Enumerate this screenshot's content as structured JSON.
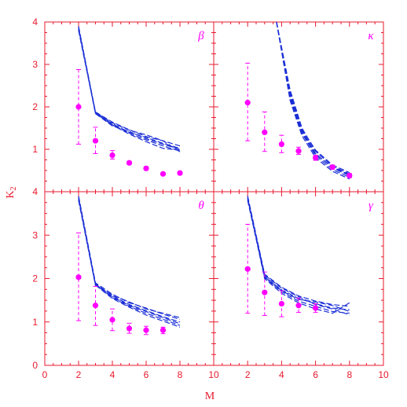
{
  "colors": {
    "frame": "#e8192c",
    "model": "#1a2ed6",
    "data": "#ff00ff"
  },
  "chart_data": {
    "type": "scatter",
    "layout": "2x2 panel grid with shared axes",
    "xlabel": "M",
    "ylabel": "K",
    "ylabel_subscript": "2",
    "xlim": [
      0,
      10
    ],
    "ylim": [
      0,
      4
    ],
    "x_ticks": [
      "0",
      "2",
      "4",
      "6",
      "8",
      "10"
    ],
    "y_ticks": [
      "0",
      "1",
      "2",
      "3",
      "4"
    ],
    "grid": false,
    "legend": "none",
    "panels": [
      {
        "label": "β",
        "position": "top-left",
        "points": [
          {
            "x": 2,
            "y": 2.0,
            "lo": 1.12,
            "hi": 2.88
          },
          {
            "x": 3,
            "y": 1.2,
            "lo": 0.9,
            "hi": 1.52
          },
          {
            "x": 4,
            "y": 0.86,
            "lo": 0.77,
            "hi": 0.97
          },
          {
            "x": 5,
            "y": 0.68,
            "lo": 0.64,
            "hi": 0.72
          },
          {
            "x": 6,
            "y": 0.55,
            "lo": 0.51,
            "hi": 0.59
          },
          {
            "x": 7,
            "y": 0.42,
            "lo": 0.39,
            "hi": 0.45
          },
          {
            "x": 8,
            "y": 0.44,
            "lo": 0.4,
            "hi": 0.48
          }
        ],
        "model_curves": [
          {
            "x": [
              2,
              3,
              4,
              5,
              6,
              7,
              8
            ],
            "y": [
              3.9,
              1.86,
              1.6,
              1.4,
              1.28,
              1.14,
              1.02
            ]
          },
          {
            "x": [
              2,
              3,
              4,
              5,
              6,
              7,
              8
            ],
            "y": [
              3.88,
              1.88,
              1.64,
              1.46,
              1.3,
              1.2,
              1.08
            ]
          },
          {
            "x": [
              2,
              3,
              4,
              5,
              6,
              7,
              8
            ],
            "y": [
              3.86,
              1.86,
              1.58,
              1.38,
              1.22,
              1.08,
              0.96
            ]
          },
          {
            "x": [
              2,
              3,
              4,
              5,
              6,
              7,
              8
            ],
            "y": [
              3.84,
              1.84,
              1.55,
              1.42,
              1.25,
              1.12,
              1.0
            ]
          },
          {
            "x": [
              2,
              3,
              4,
              5,
              6,
              7,
              8
            ],
            "y": [
              3.82,
              1.87,
              1.62,
              1.45,
              1.34,
              1.2,
              0.94
            ]
          },
          {
            "x": [
              2,
              3,
              4,
              5,
              6,
              7,
              8
            ],
            "y": [
              3.8,
              1.85,
              1.57,
              1.36,
              1.18,
              1.02,
              0.98
            ]
          }
        ]
      },
      {
        "label": "κ",
        "position": "top-right",
        "points": [
          {
            "x": 2,
            "y": 2.1,
            "lo": 1.2,
            "hi": 3.03
          },
          {
            "x": 3,
            "y": 1.4,
            "lo": 0.95,
            "hi": 1.88
          },
          {
            "x": 4,
            "y": 1.12,
            "lo": 0.92,
            "hi": 1.33
          },
          {
            "x": 5,
            "y": 0.96,
            "lo": 0.88,
            "hi": 1.05
          },
          {
            "x": 6,
            "y": 0.8,
            "lo": 0.74,
            "hi": 0.86
          },
          {
            "x": 7,
            "y": 0.58,
            "lo": 0.53,
            "hi": 0.63
          },
          {
            "x": 8,
            "y": 0.38,
            "lo": 0.33,
            "hi": 0.43
          }
        ],
        "model_curves": [
          {
            "x": [
              3.7,
              4.5,
              5.2,
              6,
              7,
              8
            ],
            "y": [
              4.0,
              2.4,
              1.5,
              0.95,
              0.6,
              0.42
            ]
          },
          {
            "x": [
              3.7,
              4.5,
              5.2,
              6,
              7,
              8
            ],
            "y": [
              4.0,
              2.3,
              1.45,
              0.9,
              0.56,
              0.38
            ]
          },
          {
            "x": [
              3.7,
              4.5,
              5.2,
              6,
              7,
              8
            ],
            "y": [
              4.0,
              2.2,
              1.38,
              0.85,
              0.52,
              0.34
            ]
          },
          {
            "x": [
              3.7,
              4.5,
              5.2,
              6,
              7,
              8
            ],
            "y": [
              4.0,
              2.15,
              1.32,
              0.8,
              0.48,
              0.3
            ]
          },
          {
            "x": [
              3.7,
              4.5,
              5.2,
              6,
              7,
              8
            ],
            "y": [
              4.0,
              2.35,
              1.48,
              0.98,
              0.63,
              0.45
            ]
          },
          {
            "x": [
              3.7,
              4.5,
              5.2,
              6,
              7,
              8
            ],
            "y": [
              4.0,
              2.25,
              1.42,
              0.88,
              0.58,
              0.4
            ]
          }
        ]
      },
      {
        "label": "θ",
        "position": "bottom-left",
        "points": [
          {
            "x": 2,
            "y": 2.03,
            "lo": 1.03,
            "hi": 3.05
          },
          {
            "x": 3,
            "y": 1.38,
            "lo": 0.92,
            "hi": 1.82
          },
          {
            "x": 4,
            "y": 1.05,
            "lo": 0.8,
            "hi": 1.3
          },
          {
            "x": 5,
            "y": 0.85,
            "lo": 0.74,
            "hi": 0.97
          },
          {
            "x": 6,
            "y": 0.81,
            "lo": 0.71,
            "hi": 0.9
          },
          {
            "x": 7,
            "y": 0.81,
            "lo": 0.73,
            "hi": 0.88
          }
        ],
        "model_curves": [
          {
            "x": [
              2,
              3,
              4,
              5,
              6,
              7,
              8
            ],
            "y": [
              3.9,
              1.9,
              1.64,
              1.44,
              1.32,
              1.18,
              1.06
            ]
          },
          {
            "x": [
              2,
              3,
              4,
              5,
              6,
              7,
              8
            ],
            "y": [
              3.88,
              1.88,
              1.6,
              1.4,
              1.26,
              1.12,
              1.0
            ]
          },
          {
            "x": [
              2,
              3,
              4,
              5,
              6,
              7,
              8
            ],
            "y": [
              3.86,
              1.86,
              1.56,
              1.36,
              1.2,
              1.06,
              0.92
            ]
          },
          {
            "x": [
              2,
              3,
              4,
              5,
              6,
              7,
              8
            ],
            "y": [
              3.84,
              1.84,
              1.62,
              1.46,
              1.3,
              1.2,
              1.1
            ]
          },
          {
            "x": [
              2,
              3,
              4,
              5,
              6,
              7,
              8
            ],
            "y": [
              3.82,
              1.87,
              1.58,
              1.38,
              1.24,
              1.1,
              0.96
            ]
          },
          {
            "x": [
              2,
              3,
              4,
              5,
              6,
              7,
              8
            ],
            "y": [
              3.8,
              1.85,
              1.54,
              1.34,
              1.16,
              1.02,
              0.88
            ]
          }
        ]
      },
      {
        "label": "γ",
        "position": "bottom-right",
        "points": [
          {
            "x": 2,
            "y": 2.22,
            "lo": 1.2,
            "hi": 3.25
          },
          {
            "x": 3,
            "y": 1.68,
            "lo": 1.15,
            "hi": 2.15
          },
          {
            "x": 4,
            "y": 1.42,
            "lo": 1.12,
            "hi": 1.72
          },
          {
            "x": 5,
            "y": 1.38,
            "lo": 1.22,
            "hi": 1.55
          },
          {
            "x": 6,
            "y": 1.32,
            "lo": 1.22,
            "hi": 1.42
          }
        ],
        "model_curves": [
          {
            "x": [
              2,
              3,
              4,
              5,
              6,
              7,
              8
            ],
            "y": [
              3.9,
              2.1,
              1.8,
              1.6,
              1.48,
              1.4,
              1.36
            ]
          },
          {
            "x": [
              2,
              3,
              4,
              5,
              6,
              7,
              8
            ],
            "y": [
              3.88,
              2.05,
              1.74,
              1.54,
              1.42,
              1.32,
              1.28
            ]
          },
          {
            "x": [
              2,
              3,
              4,
              5,
              6,
              7,
              8
            ],
            "y": [
              3.86,
              2.02,
              1.7,
              1.48,
              1.36,
              1.24,
              1.2
            ]
          },
          {
            "x": [
              2,
              3,
              4,
              5,
              6,
              7,
              8
            ],
            "y": [
              3.84,
              2.08,
              1.78,
              1.58,
              1.4,
              1.3,
              1.16
            ]
          },
          {
            "x": [
              2,
              3,
              4,
              5,
              6,
              7,
              8
            ],
            "y": [
              3.82,
              2.0,
              1.66,
              1.44,
              1.3,
              1.2,
              1.44
            ]
          },
          {
            "x": [
              2,
              3,
              4,
              5,
              6,
              7,
              8
            ],
            "y": [
              3.8,
              2.04,
              1.72,
              1.52,
              1.46,
              1.38,
              1.24
            ]
          }
        ]
      }
    ]
  }
}
